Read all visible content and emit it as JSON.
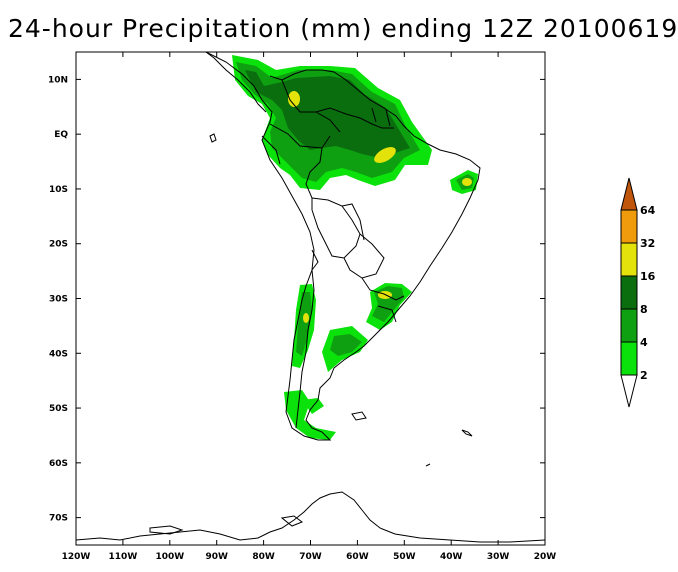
{
  "title": "24-hour Precipitation (mm) ending 12Z 20100619",
  "map": {
    "lon_range": [
      -120,
      -20
    ],
    "lat_range": [
      -75,
      15
    ],
    "x_ticks": [
      {
        "lon": -120,
        "label": "120W"
      },
      {
        "lon": -110,
        "label": "110W"
      },
      {
        "lon": -100,
        "label": "100W"
      },
      {
        "lon": -90,
        "label": "90W"
      },
      {
        "lon": -80,
        "label": "80W"
      },
      {
        "lon": -70,
        "label": "70W"
      },
      {
        "lon": -60,
        "label": "60W"
      },
      {
        "lon": -50,
        "label": "50W"
      },
      {
        "lon": -40,
        "label": "40W"
      },
      {
        "lon": -30,
        "label": "30W"
      },
      {
        "lon": -20,
        "label": "20W"
      }
    ],
    "y_ticks": [
      {
        "lat": 10,
        "label": "10N"
      },
      {
        "lat": 0,
        "label": "EQ"
      },
      {
        "lat": -10,
        "label": "10S"
      },
      {
        "lat": -20,
        "label": "20S"
      },
      {
        "lat": -30,
        "label": "30S"
      },
      {
        "lat": -40,
        "label": "40S"
      },
      {
        "lat": -50,
        "label": "50S"
      },
      {
        "lat": -60,
        "label": "60S"
      },
      {
        "lat": -70,
        "label": "70S"
      }
    ]
  },
  "colorbar": {
    "levels": [
      {
        "label": "2",
        "color": "#0be20b"
      },
      {
        "label": "4",
        "color": "#0fa012"
      },
      {
        "label": "8",
        "color": "#0a6e0e"
      },
      {
        "label": "16",
        "color": "#e3e30b"
      },
      {
        "label": "32",
        "color": "#f09b0b"
      },
      {
        "label": "64",
        "color": "#c0560b"
      }
    ],
    "under_color": "#ffffff",
    "over_color": "#c0560b"
  },
  "precip_colors": {
    "light": "#0be20b",
    "medium": "#0fa012",
    "heavy": "#0a6e0e",
    "very_heavy": "#e3e30b"
  }
}
